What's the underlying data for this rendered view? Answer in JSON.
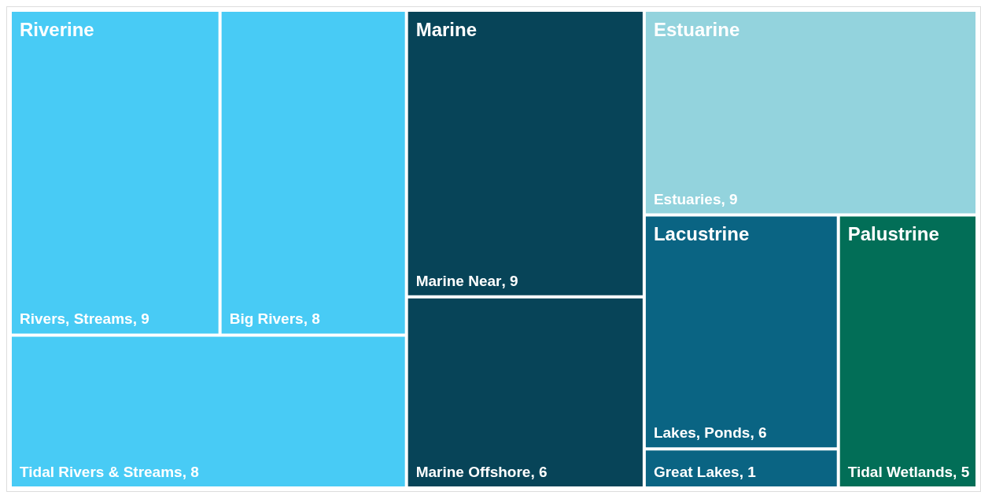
{
  "chart_data": {
    "type": "other",
    "categories": [
      "Rivers, Streams",
      "Big Rivers",
      "Tidal Rivers & Streams",
      "Marine Near",
      "Marine Offshore",
      "Estuaries",
      "Lakes, Ponds",
      "Great Lakes",
      "Tidal Wetlands"
    ],
    "series": [
      {
        "name": "Riverine",
        "color": "#48cbf5",
        "values": [
          9,
          8,
          8,
          null,
          null,
          null,
          null,
          null,
          null
        ],
        "value_labels": [
          ", 9",
          ", 8",
          ", 8",
          null,
          null,
          null,
          null,
          null,
          null
        ]
      },
      {
        "name": "Marine",
        "color": "#074458",
        "values": [
          null,
          null,
          null,
          9,
          6,
          null,
          null,
          null,
          null
        ],
        "value_labels": [
          null,
          null,
          null,
          ", 9",
          ", 6",
          null,
          null,
          null,
          null
        ]
      },
      {
        "name": "Estuarine",
        "color": "#93d3dd",
        "values": [
          null,
          null,
          null,
          null,
          null,
          9,
          null,
          null,
          null
        ],
        "value_labels": [
          null,
          null,
          null,
          null,
          null,
          ", 9",
          null,
          null,
          null
        ]
      },
      {
        "name": "Lacustrine",
        "color": "#0a6483",
        "values": [
          null,
          null,
          null,
          null,
          null,
          null,
          6,
          1,
          null
        ],
        "value_labels": [
          null,
          null,
          null,
          null,
          null,
          null,
          ", 6",
          ", 1",
          null
        ]
      },
      {
        "name": "Palustrine",
        "color": "#026e57",
        "values": [
          null,
          null,
          null,
          null,
          null,
          null,
          null,
          null,
          5
        ],
        "value_labels": [
          null,
          null,
          null,
          null,
          null,
          null,
          null,
          null,
          ", 5"
        ]
      }
    ],
    "legend": false
  }
}
